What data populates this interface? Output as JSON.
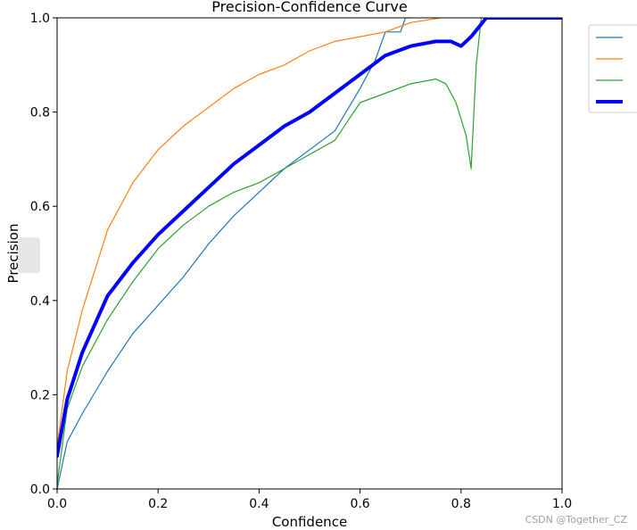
{
  "chart_data": {
    "type": "line",
    "title": "Precision-Confidence Curve",
    "xlabel": "Confidence",
    "ylabel": "Precision",
    "xlim": [
      0.0,
      1.0
    ],
    "ylim": [
      0.0,
      1.0
    ],
    "xticks": [
      "0.0",
      "0.2",
      "0.4",
      "0.6",
      "0.8",
      "1.0"
    ],
    "yticks": [
      "0.0",
      "0.2",
      "0.4",
      "0.6",
      "0.8",
      "1.0"
    ],
    "grid": false,
    "legend_position": "outside-top-right",
    "series": [
      {
        "color": "#1f77b4",
        "x": [
          0.0,
          0.02,
          0.05,
          0.1,
          0.15,
          0.2,
          0.25,
          0.3,
          0.35,
          0.4,
          0.45,
          0.5,
          0.55,
          0.6,
          0.63,
          0.65,
          0.68,
          0.69,
          0.7
        ],
        "values": [
          0.0,
          0.1,
          0.16,
          0.25,
          0.33,
          0.39,
          0.45,
          0.52,
          0.58,
          0.63,
          0.68,
          0.72,
          0.76,
          0.85,
          0.91,
          0.97,
          0.97,
          1.0,
          1.0
        ]
      },
      {
        "color": "#ff7f0e",
        "x": [
          0.0,
          0.02,
          0.05,
          0.1,
          0.15,
          0.2,
          0.25,
          0.3,
          0.35,
          0.4,
          0.45,
          0.5,
          0.55,
          0.6,
          0.65,
          0.7,
          0.76
        ],
        "values": [
          0.09,
          0.25,
          0.38,
          0.55,
          0.65,
          0.72,
          0.77,
          0.81,
          0.85,
          0.88,
          0.9,
          0.93,
          0.95,
          0.96,
          0.97,
          0.99,
          1.0
        ]
      },
      {
        "color": "#2ca02c",
        "x": [
          0.0,
          0.02,
          0.05,
          0.1,
          0.15,
          0.2,
          0.25,
          0.3,
          0.35,
          0.4,
          0.45,
          0.5,
          0.55,
          0.6,
          0.65,
          0.7,
          0.75,
          0.77,
          0.79,
          0.81,
          0.82,
          0.83,
          0.84
        ],
        "values": [
          0.01,
          0.17,
          0.26,
          0.36,
          0.44,
          0.51,
          0.56,
          0.6,
          0.63,
          0.65,
          0.68,
          0.71,
          0.74,
          0.82,
          0.84,
          0.86,
          0.87,
          0.86,
          0.82,
          0.75,
          0.68,
          0.9,
          1.0
        ]
      },
      {
        "color": "#0000ff",
        "x": [
          0.0,
          0.02,
          0.05,
          0.1,
          0.15,
          0.2,
          0.25,
          0.3,
          0.35,
          0.4,
          0.45,
          0.5,
          0.55,
          0.6,
          0.65,
          0.7,
          0.75,
          0.78,
          0.8,
          0.82,
          0.85,
          0.9,
          1.0
        ],
        "values": [
          0.07,
          0.19,
          0.29,
          0.41,
          0.48,
          0.54,
          0.59,
          0.64,
          0.69,
          0.73,
          0.77,
          0.8,
          0.84,
          0.88,
          0.92,
          0.94,
          0.95,
          0.95,
          0.94,
          0.96,
          1.0,
          1.0,
          1.0
        ]
      }
    ]
  },
  "watermark": "CSDN @Together_CZ"
}
